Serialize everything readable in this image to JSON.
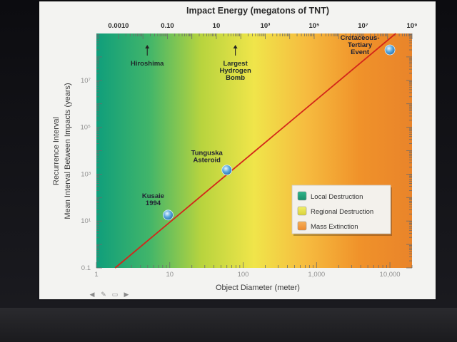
{
  "app": {
    "toolbar": {
      "prev_icon": "arrow-left-icon",
      "pen_icon": "pen-icon",
      "menu_icon": "menu-icon",
      "next_icon": "arrow-right-icon"
    }
  },
  "chart_data": {
    "type": "line",
    "top_axis_title": "Impact Energy (megatons of TNT)",
    "top_ticks": [
      {
        "label": "0.0010",
        "value": 0.001
      },
      {
        "label": "0.10",
        "value": 0.1
      },
      {
        "label": "10",
        "value": 10
      },
      {
        "label": "10³",
        "value": 1000
      },
      {
        "label": "10⁵",
        "value": 100000
      },
      {
        "label": "10⁷",
        "value": 10000000
      },
      {
        "label": "10⁹",
        "value": 1000000000
      }
    ],
    "xlabel": "Object Diameter (meter)",
    "x_scale": "log",
    "xlim": [
      1,
      20000
    ],
    "x_ticks": [
      {
        "label": "1",
        "value": 1
      },
      {
        "label": "10",
        "value": 10
      },
      {
        "label": "100",
        "value": 100
      },
      {
        "label": "1,000",
        "value": 1000
      },
      {
        "label": "10,000",
        "value": 10000
      }
    ],
    "ylabel_line1": "Recurrence Interval",
    "ylabel_line2": "Mean Interval Between Impacts (years)",
    "y_scale": "log",
    "ylim": [
      0.1,
      1000000000
    ],
    "y_ticks": [
      {
        "label": "0.1",
        "value": 0.1
      },
      {
        "label": "10¹",
        "value": 10
      },
      {
        "label": "10³",
        "value": 1000
      },
      {
        "label": "10⁵",
        "value": 100000
      },
      {
        "label": "10⁷",
        "value": 10000000
      }
    ],
    "series": [
      {
        "x": [
          1.8,
          12000
        ],
        "y": [
          0.1,
          1000000000
        ],
        "color": "#d3261a"
      }
    ],
    "points": [
      {
        "label": "Kusaie 1994",
        "lines": [
          "Kusaie",
          "1994"
        ],
        "x": 9.5,
        "y": 18
      },
      {
        "label": "Tunguska Asteroid",
        "lines": [
          "Tunguska",
          "Asteroid"
        ],
        "x": 60,
        "y": 1500
      },
      {
        "label": "Cretaceous-Tertiary Event",
        "lines": [
          "Cretaceous-",
          "Tertiary",
          "Event"
        ],
        "x": 10000,
        "y": 200000000
      }
    ],
    "top_markers": [
      {
        "lines": [
          "Hiroshima"
        ],
        "energy": 0.015
      },
      {
        "lines": [
          "Largest",
          "Hydrogen",
          "Bomb"
        ],
        "energy": 60
      }
    ],
    "legend": {
      "placement": "lower-right",
      "items": [
        {
          "label": "Local Destruction",
          "color_top": "#2fb58a",
          "color_bottom": "#1a8f6a"
        },
        {
          "label": "Regional Destruction",
          "color_top": "#f2ef6a",
          "color_bottom": "#d8d13a"
        },
        {
          "label": "Mass Extinction",
          "color_top": "#f6b05a",
          "color_bottom": "#ee8a2c"
        }
      ]
    },
    "background_gradient": [
      "#0f9e7b",
      "#41b56a",
      "#b8d43e",
      "#f0e54a",
      "#f6bb3f",
      "#f0922a",
      "#e9842a"
    ]
  }
}
